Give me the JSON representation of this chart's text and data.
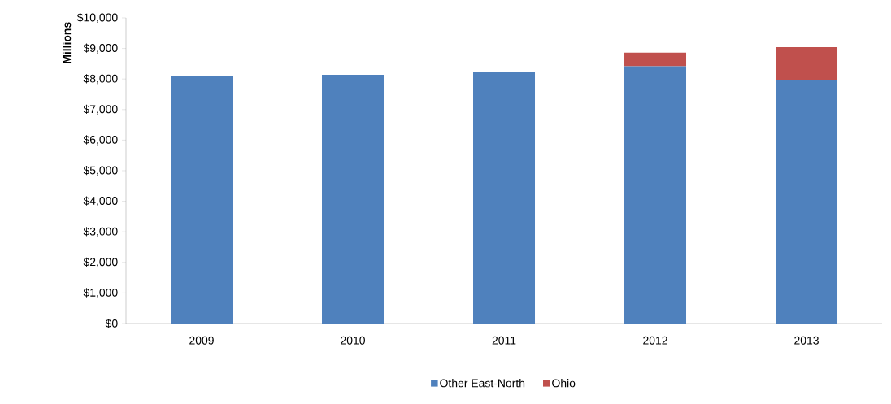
{
  "chart_data": {
    "type": "bar",
    "stacked": true,
    "ylabel": "Millions",
    "categories": [
      "2009",
      "2010",
      "2011",
      "2012",
      "2013"
    ],
    "series": [
      {
        "name": "Other East-North",
        "color": "#4f81bd",
        "values": [
          8100,
          8140,
          8220,
          8420,
          7970
        ]
      },
      {
        "name": "Ohio",
        "color": "#c0504d",
        "values": [
          0,
          0,
          0,
          440,
          1070
        ]
      }
    ],
    "ylim": [
      0,
      10000
    ],
    "yticks": [
      {
        "value": 0,
        "label": "$0"
      },
      {
        "value": 1000,
        "label": "$1,000"
      },
      {
        "value": 2000,
        "label": "$2,000"
      },
      {
        "value": 3000,
        "label": "$3,000"
      },
      {
        "value": 4000,
        "label": "$4,000"
      },
      {
        "value": 5000,
        "label": "$5,000"
      },
      {
        "value": 6000,
        "label": "$6,000"
      },
      {
        "value": 7000,
        "label": "$7,000"
      },
      {
        "value": 8000,
        "label": "$8,000"
      },
      {
        "value": 9000,
        "label": "$9,000"
      },
      {
        "value": 10000,
        "label": "$10,000"
      }
    ],
    "grid": false,
    "legend": "bottom"
  }
}
